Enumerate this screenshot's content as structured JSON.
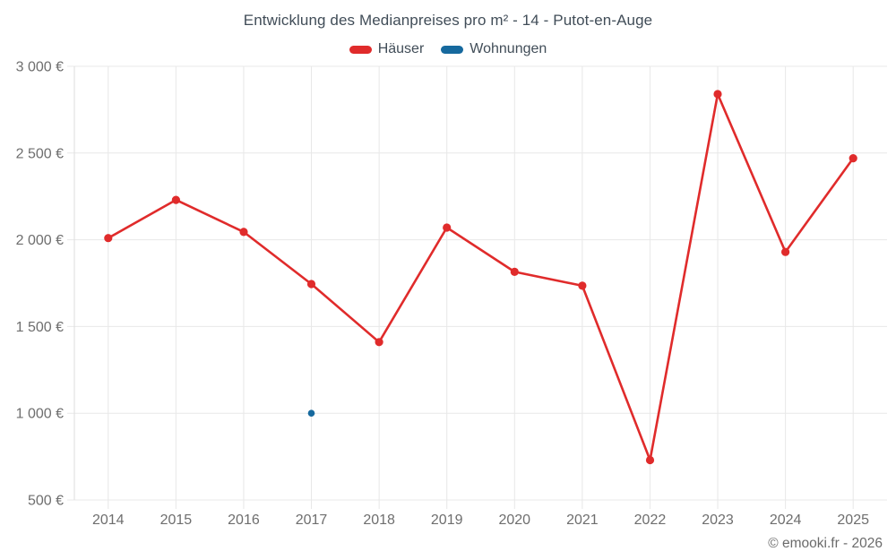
{
  "footer": "© emooki.fr - 2026",
  "colors": {
    "grid": "#e8e8e8",
    "axis": "#dedede",
    "tick_label": "#6e6e6e",
    "title_text": "#414d58",
    "haeuser_red": "#e02b2b",
    "wohnungen_blue": "#16699e"
  },
  "chart_data": {
    "type": "line",
    "title": "Entwicklung des Medianpreises pro m² - 14 - Putot-en-Auge",
    "categories": [
      "2014",
      "2015",
      "2016",
      "2017",
      "2018",
      "2019",
      "2020",
      "2021",
      "2022",
      "2023",
      "2024",
      "2025"
    ],
    "series": [
      {
        "name": "Häuser",
        "color": "#e02b2b",
        "point_radius": 4.6,
        "values": [
          2010,
          2230,
          2045,
          1745,
          1410,
          2070,
          1815,
          1735,
          730,
          2840,
          1930,
          2470
        ]
      },
      {
        "name": "Wohnungen",
        "color": "#16699e",
        "point_radius": 3.8,
        "values": [
          null,
          null,
          null,
          1000,
          null,
          null,
          null,
          null,
          null,
          null,
          null,
          null
        ]
      }
    ],
    "ylim": [
      500,
      3000
    ],
    "yticks": {
      "values": [
        500,
        1000,
        1500,
        2000,
        2500,
        3000
      ],
      "labels": [
        "500 €",
        "1 000 €",
        "1 500 €",
        "2 000 €",
        "2 500 €",
        "3 000 €"
      ]
    },
    "grid": true,
    "legend_position": "top",
    "xlabel": "",
    "ylabel": ""
  }
}
